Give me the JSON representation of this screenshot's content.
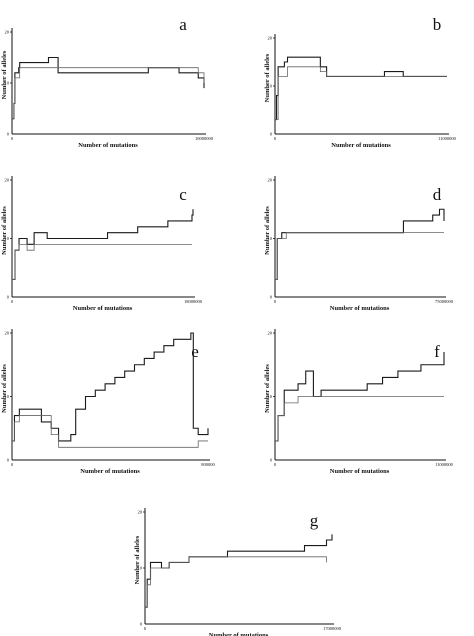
{
  "colors": {
    "axis": "#111111",
    "series_dark": "#1a1a1a",
    "series_light": "#666666"
  },
  "chart_data": [
    {
      "type": "line",
      "panel": "a",
      "xlabel": "Number of mutations",
      "ylabel": "Number of alleles",
      "x_tick_labels": [
        "0",
        "10000000"
      ],
      "y_tick_labels": [
        "20",
        "10",
        "0"
      ],
      "xlim": [
        0,
        10000000
      ],
      "ylim": [
        0,
        20
      ],
      "grid": false,
      "series": [
        {
          "x": [
            0,
            100000,
            150000,
            350000,
            400000,
            1800000,
            1900000,
            2300000,
            2400000,
            3500000,
            3600000,
            7000000,
            7100000,
            8600000,
            8700000,
            9600000,
            9700000,
            10000000
          ],
          "y": [
            3,
            6,
            12,
            13,
            14,
            14,
            15,
            15,
            12,
            12,
            12,
            12,
            13,
            13,
            12,
            12,
            11,
            9
          ]
        },
        {
          "x": [
            0,
            100000,
            150000,
            400000,
            1800000,
            1900000,
            3500000,
            7000000,
            9600000,
            9700000,
            10000000
          ],
          "y": [
            3,
            6,
            11,
            13,
            13,
            13,
            13,
            13,
            13,
            12,
            10
          ]
        }
      ]
    },
    {
      "type": "line",
      "panel": "b",
      "xlabel": "Number of mutations",
      "ylabel": "Number of alleles",
      "x_tick_labels": [
        "0",
        "11000000"
      ],
      "y_tick_labels": [
        "20",
        "10",
        "0"
      ],
      "xlim": [
        0,
        11000000
      ],
      "ylim": [
        0,
        20
      ],
      "grid": false,
      "series": [
        {
          "x": [
            0,
            100000,
            200000,
            600000,
            800000,
            2600000,
            2900000,
            3300000,
            6500000,
            7000000,
            8200000,
            11000000
          ],
          "y": [
            3,
            8,
            14,
            15,
            16,
            16,
            14,
            12,
            12,
            13,
            12,
            12
          ]
        },
        {
          "x": [
            0,
            200000,
            800000,
            2600000,
            2900000,
            3300000,
            6500000,
            7000000,
            8200000,
            11000000
          ],
          "y": [
            3,
            12,
            14,
            14,
            13,
            12,
            12,
            12,
            12,
            12
          ]
        }
      ]
    },
    {
      "type": "line",
      "panel": "c",
      "xlabel": "Number of mutations",
      "ylabel": "Number of alleles",
      "x_tick_labels": [
        "0",
        "18000000"
      ],
      "y_tick_labels": [
        "20",
        "10",
        "0"
      ],
      "xlim": [
        0,
        18000000
      ],
      "ylim": [
        0,
        20
      ],
      "grid": false,
      "series": [
        {
          "x": [
            0,
            300000,
            700000,
            1500000,
            2200000,
            3000000,
            3500000,
            7000000,
            9500000,
            12500000,
            15500000,
            17900000,
            18000000
          ],
          "y": [
            3,
            8,
            10,
            9,
            11,
            11,
            10,
            10,
            11,
            12,
            13,
            14,
            15
          ]
        },
        {
          "x": [
            0,
            300000,
            700000,
            1500000,
            2200000,
            3000000,
            7000000,
            12500000,
            17900000
          ],
          "y": [
            3,
            8,
            9,
            8,
            9,
            9,
            9,
            9,
            9
          ]
        }
      ]
    },
    {
      "type": "line",
      "panel": "d",
      "xlabel": "Number of mutations",
      "ylabel": "Number of alleles",
      "x_tick_labels": [
        "0",
        "75000000"
      ],
      "y_tick_labels": [
        "20",
        "10",
        "0"
      ],
      "xlim": [
        0,
        75000000
      ],
      "ylim": [
        0,
        20
      ],
      "grid": false,
      "series": [
        {
          "x": [
            0,
            1000000,
            3000000,
            5000000,
            55000000,
            57000000,
            70000000,
            73000000,
            75000000
          ],
          "y": [
            3,
            10,
            11,
            11,
            11,
            13,
            14,
            15,
            13
          ]
        },
        {
          "x": [
            0,
            1000000,
            3000000,
            5000000,
            55000000,
            57000000,
            73000000,
            75000000
          ],
          "y": [
            3,
            10,
            10,
            11,
            11,
            11,
            11,
            11
          ]
        }
      ]
    },
    {
      "type": "line",
      "panel": "e",
      "xlabel": "Number of mutations",
      "ylabel": "Number of alleles",
      "x_tick_labels": [
        "0",
        "800000"
      ],
      "y_tick_labels": [
        "20",
        "10",
        "0"
      ],
      "xlim": [
        0,
        800000
      ],
      "ylim": [
        0,
        20
      ],
      "grid": false,
      "series": [
        {
          "x": [
            0,
            10000,
            30000,
            100000,
            120000,
            160000,
            190000,
            240000,
            260000,
            300000,
            340000,
            380000,
            420000,
            460000,
            500000,
            540000,
            580000,
            620000,
            660000,
            700000,
            730000,
            740000,
            760000,
            800000
          ],
          "y": [
            3,
            7,
            8,
            8,
            6,
            5,
            3,
            4,
            8,
            10,
            11,
            12,
            13,
            14,
            15,
            16,
            17,
            18,
            19,
            19,
            20,
            5,
            4,
            5
          ]
        },
        {
          "x": [
            0,
            10000,
            30000,
            100000,
            160000,
            190000,
            740000,
            760000,
            800000
          ],
          "y": [
            3,
            6,
            7,
            7,
            4,
            2,
            2,
            3,
            3
          ]
        }
      ]
    },
    {
      "type": "line",
      "panel": "f",
      "xlabel": "Number of mutations",
      "ylabel": "Number of alleles",
      "x_tick_labels": [
        "0",
        "11000000"
      ],
      "y_tick_labels": [
        "20",
        "10",
        "0"
      ],
      "xlim": [
        0,
        11000000
      ],
      "ylim": [
        0,
        20
      ],
      "grid": false,
      "series": [
        {
          "x": [
            0,
            200000,
            600000,
            1500000,
            2000000,
            2500000,
            3000000,
            3500000,
            4500000,
            6000000,
            7000000,
            8000000,
            9500000,
            11000000
          ],
          "y": [
            3,
            7,
            11,
            12,
            14,
            10,
            11,
            11,
            11,
            12,
            13,
            14,
            15,
            17
          ]
        },
        {
          "x": [
            0,
            200000,
            600000,
            1500000,
            2000000,
            2500000,
            3000000,
            6000000,
            9500000,
            11000000
          ],
          "y": [
            3,
            7,
            9,
            10,
            10,
            10,
            10,
            10,
            10,
            10
          ]
        }
      ]
    },
    {
      "type": "line",
      "panel": "g",
      "xlabel": "Number of mutations",
      "ylabel": "Number of alleles",
      "x_tick_labels": [
        "0",
        "17000000"
      ],
      "y_tick_labels": [
        "20",
        "10",
        "0"
      ],
      "xlim": [
        0,
        17000000
      ],
      "ylim": [
        0,
        20
      ],
      "grid": false,
      "series": [
        {
          "x": [
            0,
            200000,
            500000,
            1500000,
            2200000,
            4000000,
            7500000,
            11000000,
            14500000,
            16500000,
            17000000
          ],
          "y": [
            3,
            8,
            11,
            10,
            11,
            12,
            13,
            13,
            14,
            15,
            16
          ]
        },
        {
          "x": [
            0,
            200000,
            500000,
            1500000,
            2200000,
            4000000,
            11000000,
            14500000,
            16500000
          ],
          "y": [
            3,
            7,
            10,
            10,
            11,
            12,
            12,
            12,
            11
          ]
        }
      ]
    }
  ]
}
